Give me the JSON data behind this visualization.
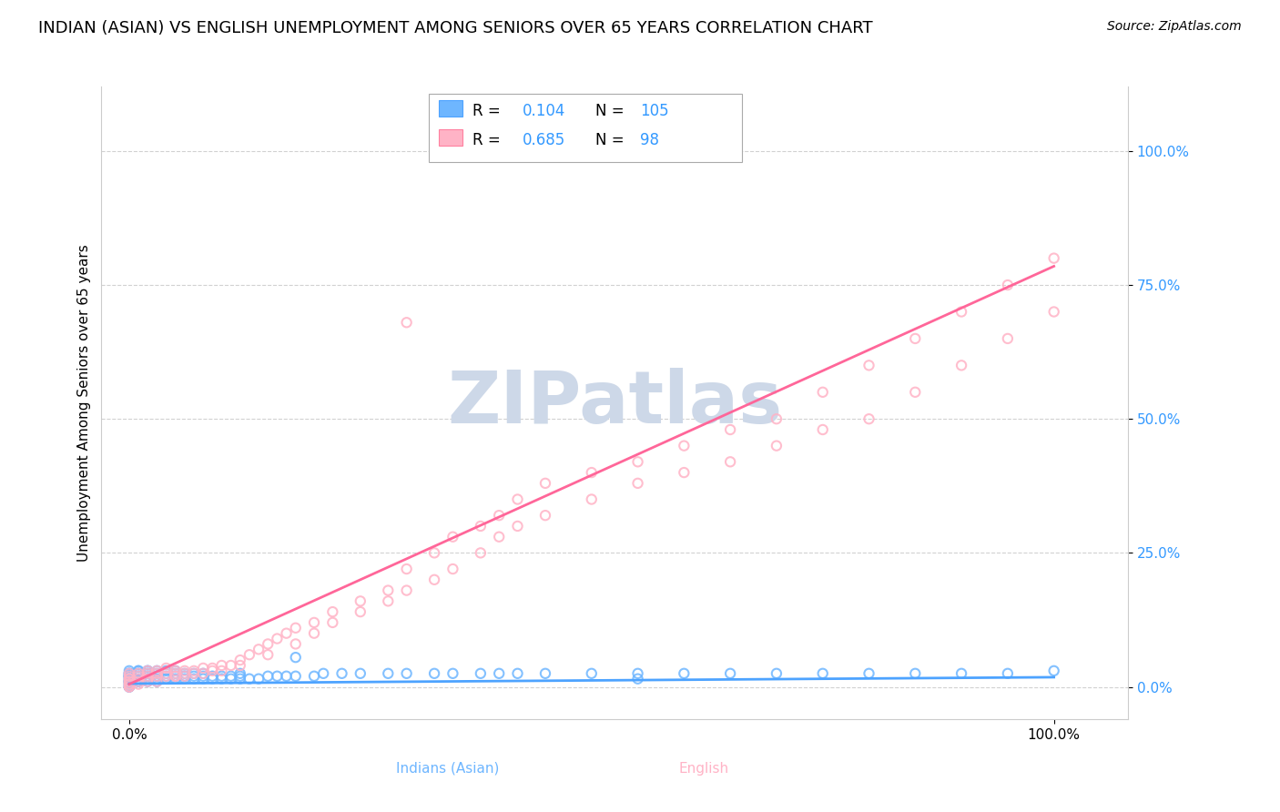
{
  "title": "INDIAN (ASIAN) VS ENGLISH UNEMPLOYMENT AMONG SENIORS OVER 65 YEARS CORRELATION CHART",
  "source": "Source: ZipAtlas.com",
  "ylabel": "Unemployment Among Seniors over 65 years",
  "watermark": "ZIPatlas",
  "series": [
    {
      "name": "Indians (Asian)",
      "color": "#6eb6ff",
      "edge_color": "#4da3ff",
      "line_color": "#4da3ff",
      "R": 0.104,
      "N": 105,
      "slope": 0.012,
      "intercept": 0.006,
      "x_scatter": [
        0.0,
        0.0,
        0.0,
        0.0,
        0.0,
        0.0,
        0.0,
        0.0,
        0.0,
        0.0,
        0.0,
        0.0,
        0.0,
        0.0,
        0.0,
        0.0,
        0.0,
        0.0,
        0.0,
        0.0,
        0.01,
        0.01,
        0.01,
        0.01,
        0.01,
        0.01,
        0.01,
        0.01,
        0.01,
        0.01,
        0.02,
        0.02,
        0.02,
        0.02,
        0.02,
        0.02,
        0.02,
        0.02,
        0.02,
        0.03,
        0.03,
        0.03,
        0.03,
        0.03,
        0.03,
        0.04,
        0.04,
        0.04,
        0.04,
        0.04,
        0.05,
        0.05,
        0.05,
        0.05,
        0.05,
        0.06,
        0.06,
        0.06,
        0.06,
        0.07,
        0.07,
        0.07,
        0.08,
        0.08,
        0.08,
        0.09,
        0.09,
        0.1,
        0.1,
        0.11,
        0.11,
        0.12,
        0.12,
        0.13,
        0.14,
        0.15,
        0.16,
        0.17,
        0.18,
        0.2,
        0.21,
        0.23,
        0.25,
        0.28,
        0.3,
        0.33,
        0.35,
        0.38,
        0.4,
        0.42,
        0.45,
        0.5,
        0.55,
        0.6,
        0.65,
        0.7,
        0.75,
        0.8,
        0.85,
        0.9,
        0.95,
        1.0,
        0.12,
        0.18,
        0.55
      ],
      "y_scatter": [
        0.0,
        0.0,
        0.0,
        0.005,
        0.005,
        0.01,
        0.01,
        0.01,
        0.01,
        0.015,
        0.015,
        0.02,
        0.02,
        0.02,
        0.02,
        0.02,
        0.025,
        0.025,
        0.025,
        0.03,
        0.01,
        0.01,
        0.015,
        0.02,
        0.02,
        0.025,
        0.025,
        0.025,
        0.03,
        0.03,
        0.01,
        0.015,
        0.015,
        0.02,
        0.02,
        0.025,
        0.025,
        0.03,
        0.03,
        0.01,
        0.015,
        0.02,
        0.02,
        0.025,
        0.03,
        0.015,
        0.015,
        0.02,
        0.025,
        0.03,
        0.015,
        0.02,
        0.02,
        0.025,
        0.03,
        0.015,
        0.02,
        0.02,
        0.025,
        0.015,
        0.02,
        0.025,
        0.015,
        0.02,
        0.025,
        0.015,
        0.02,
        0.015,
        0.02,
        0.015,
        0.02,
        0.015,
        0.02,
        0.015,
        0.015,
        0.02,
        0.02,
        0.02,
        0.02,
        0.02,
        0.025,
        0.025,
        0.025,
        0.025,
        0.025,
        0.025,
        0.025,
        0.025,
        0.025,
        0.025,
        0.025,
        0.025,
        0.025,
        0.025,
        0.025,
        0.025,
        0.025,
        0.025,
        0.025,
        0.025,
        0.025,
        0.03,
        0.025,
        0.055,
        0.015
      ]
    },
    {
      "name": "English",
      "color": "#ffb3c6",
      "edge_color": "#ff80a0",
      "line_color": "#ff6699",
      "R": 0.685,
      "N": 98,
      "slope": 0.78,
      "intercept": 0.005,
      "x_scatter": [
        0.0,
        0.0,
        0.0,
        0.0,
        0.0,
        0.0,
        0.0,
        0.0,
        0.0,
        0.0,
        0.01,
        0.01,
        0.01,
        0.01,
        0.01,
        0.02,
        0.02,
        0.02,
        0.02,
        0.02,
        0.03,
        0.03,
        0.03,
        0.03,
        0.04,
        0.04,
        0.04,
        0.05,
        0.05,
        0.05,
        0.06,
        0.06,
        0.06,
        0.07,
        0.07,
        0.08,
        0.08,
        0.09,
        0.09,
        0.1,
        0.11,
        0.12,
        0.13,
        0.14,
        0.15,
        0.16,
        0.17,
        0.18,
        0.2,
        0.22,
        0.25,
        0.28,
        0.3,
        0.33,
        0.35,
        0.38,
        0.4,
        0.42,
        0.45,
        0.5,
        0.55,
        0.6,
        0.65,
        0.7,
        0.75,
        0.8,
        0.85,
        0.9,
        0.95,
        1.0,
        0.05,
        0.1,
        0.12,
        0.15,
        0.18,
        0.2,
        0.22,
        0.25,
        0.28,
        0.3,
        0.33,
        0.35,
        0.38,
        0.4,
        0.42,
        0.45,
        0.5,
        0.55,
        0.6,
        0.65,
        0.7,
        0.75,
        0.8,
        0.85,
        0.9,
        0.95,
        1.0,
        0.3
      ],
      "y_scatter": [
        0.0,
        0.0,
        0.005,
        0.005,
        0.01,
        0.01,
        0.015,
        0.015,
        0.02,
        0.025,
        0.005,
        0.01,
        0.015,
        0.02,
        0.025,
        0.01,
        0.015,
        0.02,
        0.025,
        0.03,
        0.01,
        0.02,
        0.025,
        0.03,
        0.02,
        0.025,
        0.035,
        0.02,
        0.025,
        0.03,
        0.02,
        0.025,
        0.03,
        0.025,
        0.03,
        0.025,
        0.035,
        0.03,
        0.035,
        0.04,
        0.04,
        0.05,
        0.06,
        0.07,
        0.08,
        0.09,
        0.1,
        0.11,
        0.12,
        0.14,
        0.16,
        0.18,
        0.22,
        0.25,
        0.28,
        0.3,
        0.32,
        0.35,
        0.38,
        0.4,
        0.42,
        0.45,
        0.48,
        0.5,
        0.55,
        0.6,
        0.65,
        0.7,
        0.75,
        0.8,
        0.02,
        0.03,
        0.04,
        0.06,
        0.08,
        0.1,
        0.12,
        0.14,
        0.16,
        0.18,
        0.2,
        0.22,
        0.25,
        0.28,
        0.3,
        0.32,
        0.35,
        0.38,
        0.4,
        0.42,
        0.45,
        0.48,
        0.5,
        0.55,
        0.6,
        0.65,
        0.7,
        0.68
      ]
    }
  ],
  "ytick_labels": [
    "0.0%",
    "25.0%",
    "50.0%",
    "75.0%",
    "100.0%"
  ],
  "ytick_values": [
    0.0,
    0.25,
    0.5,
    0.75,
    1.0
  ],
  "xtick_labels": [
    "0.0%",
    "100.0%"
  ],
  "xtick_values": [
    0.0,
    1.0
  ],
  "xlim": [
    -0.03,
    1.08
  ],
  "ylim": [
    -0.06,
    1.12
  ],
  "grid_color": "#cccccc",
  "bg_color": "#ffffff",
  "title_fontsize": 13,
  "axis_label_fontsize": 11,
  "tick_label_color": "#3399ff",
  "watermark_color": "#cdd8e8",
  "scatter_size": 55,
  "legend_box_color": "#aaaaaa",
  "bottom_label_colors": [
    "#6eb6ff",
    "#ffb3c6"
  ]
}
